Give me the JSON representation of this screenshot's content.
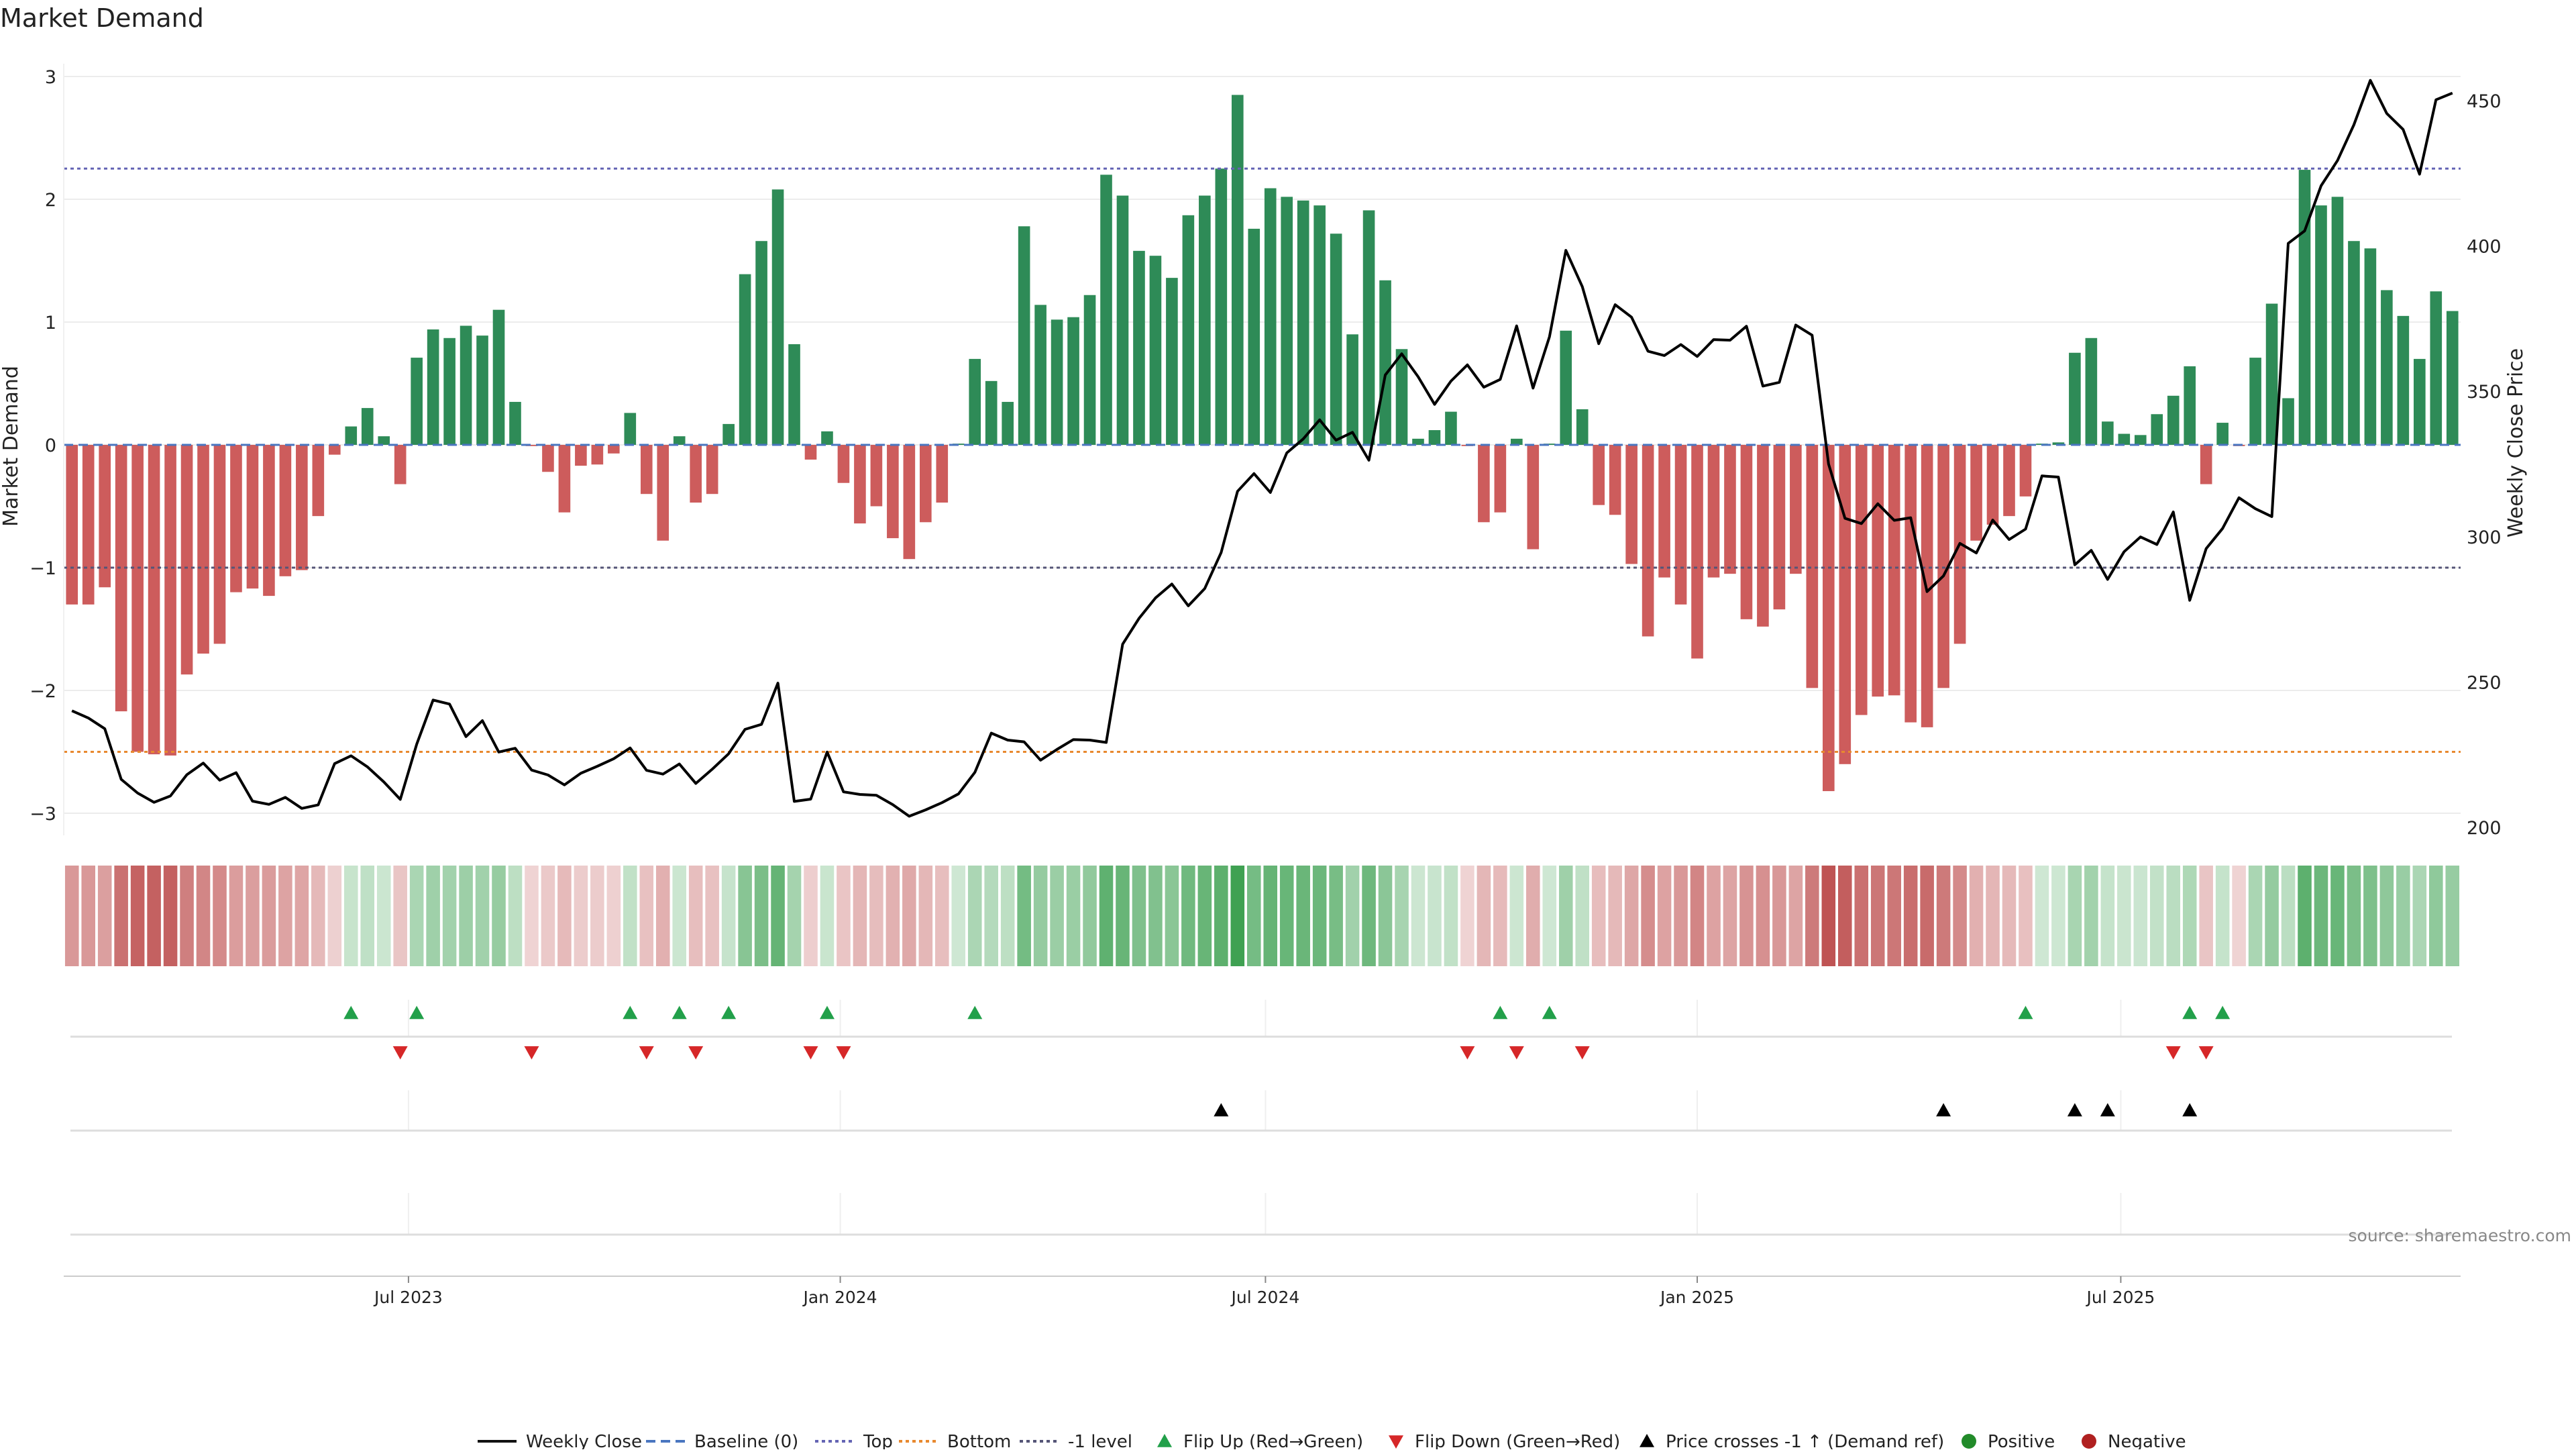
{
  "title": "Market Demand",
  "source": "source: sharemaestro.com",
  "chart_data": {
    "type": "bar",
    "title": "Market Demand",
    "ylabel": "Market Demand",
    "y2label": "Weekly Close Price",
    "ylim": [
      -3.3,
      3.0
    ],
    "yticks": [
      3,
      2,
      1,
      0,
      -1,
      -2,
      -3
    ],
    "ytick_labels": [
      "3",
      "2",
      "1",
      "0",
      "−1",
      "−2",
      "−3"
    ],
    "y2lim": [
      197,
      455
    ],
    "y2ticks": [
      450,
      400,
      350,
      300,
      250,
      200
    ],
    "ytick2_labels": [
      "450",
      "400",
      "350",
      "300",
      "250",
      "200"
    ],
    "xticks": [
      {
        "label": "Jul 2023",
        "week": 20.5
      },
      {
        "label": "Jan 2024",
        "week": 46.8
      },
      {
        "label": "Jul 2024",
        "week": 72.7
      },
      {
        "label": "Jan 2025",
        "week": 99.0
      },
      {
        "label": "Jul 2025",
        "week": 124.8
      }
    ],
    "reference_lines": {
      "top": 2.25,
      "bottom": -2.5,
      "minus_one": -1,
      "baseline": 0
    },
    "demand": [
      -1.3,
      -1.3,
      -1.16,
      -2.17,
      -2.5,
      -2.52,
      -2.53,
      -1.87,
      -1.7,
      -1.62,
      -1.2,
      -1.17,
      -1.23,
      -1.07,
      -1.02,
      -0.58,
      -0.08,
      0.15,
      0.3,
      0.07,
      -0.32,
      0.71,
      0.94,
      0.87,
      0.97,
      0.89,
      1.1,
      0.35,
      -0.01,
      -0.22,
      -0.55,
      -0.17,
      -0.16,
      -0.07,
      0.26,
      -0.4,
      -0.78,
      0.07,
      -0.47,
      -0.4,
      0.17,
      1.39,
      1.66,
      2.08,
      0.82,
      -0.12,
      0.11,
      -0.31,
      -0.64,
      -0.5,
      -0.76,
      -0.93,
      -0.63,
      -0.47,
      0.01,
      0.7,
      0.52,
      0.35,
      1.78,
      1.14,
      1.02,
      1.04,
      1.22,
      2.2,
      2.03,
      1.58,
      1.54,
      1.36,
      1.87,
      2.03,
      2.25,
      2.85,
      1.76,
      2.09,
      2.02,
      1.99,
      1.95,
      1.72,
      0.9,
      1.91,
      1.34,
      0.78,
      0.05,
      0.12,
      0.27,
      -0.01,
      -0.63,
      -0.55,
      0.05,
      -0.85,
      0.01,
      0.93,
      0.29,
      -0.49,
      -0.57,
      -0.97,
      -1.56,
      -1.08,
      -1.3,
      -1.74,
      -1.08,
      -1.05,
      -1.42,
      -1.48,
      -1.34,
      -1.05,
      -1.98,
      -2.82,
      -2.6,
      -2.2,
      -2.05,
      -2.04,
      -2.26,
      -2.3,
      -1.98,
      -1.62,
      -0.78,
      -0.65,
      -0.58,
      -0.42,
      0.01,
      0.02,
      0.75,
      0.87,
      0.19,
      0.09,
      0.08,
      0.25,
      0.4,
      0.64,
      -0.32,
      0.18,
      -0.01,
      0.71,
      1.15,
      0.38,
      2.24,
      1.95,
      2.02,
      1.66,
      1.6,
      1.26,
      1.05,
      0.7,
      1.25,
      1.09
    ],
    "weekly_close": [
      240.1,
      237.6,
      233.9,
      216.5,
      211.8,
      208.6,
      210.8,
      218.1,
      222.1,
      216.2,
      218.8,
      209.0,
      207.9,
      210.3,
      206.5,
      207.7,
      221.9,
      224.6,
      220.8,
      215.6,
      209.6,
      228.6,
      243.8,
      242.4,
      231.2,
      236.7,
      225.9,
      227.2,
      219.7,
      218.0,
      214.6,
      218.6,
      221.0,
      223.6,
      227.3,
      219.6,
      218.3,
      221.8,
      215.1,
      220.0,
      225.3,
      233.7,
      235.4,
      249.6,
      208.9,
      209.7,
      225.9,
      212.2,
      211.3,
      211.0,
      207.8,
      203.8,
      206.0,
      208.5,
      211.5,
      218.9,
      232.4,
      230.0,
      229.4,
      223.1,
      226.8,
      230.2,
      230.0,
      229.2,
      263.0,
      271.9,
      278.9,
      283.7,
      276.2,
      282.1,
      294.5,
      315.6,
      321.7,
      315.2,
      328.8,
      333.6,
      340.2,
      333.2,
      335.9,
      326.3,
      355.6,
      362.9,
      355.0,
      345.5,
      353.5,
      359.1,
      351.4,
      354.1,
      372.5,
      351.1,
      368.8,
      398.5,
      386.0,
      366.4,
      379.8,
      375.5,
      363.8,
      362.3,
      366.1,
      362.0,
      367.8,
      367.6,
      372.4,
      351.8,
      353.1,
      372.8,
      369.3,
      325.0,
      306.3,
      304.5,
      311.3,
      305.6,
      306.5,
      281.1,
      286.5,
      297.7,
      294.4,
      305.7,
      299.0,
      302.6,
      320.9,
      320.5,
      290.3,
      295.3,
      285.3,
      294.8,
      299.9,
      297.3,
      308.5,
      278.1,
      295.9,
      302.8,
      313.4,
      309.6,
      306.9,
      400.9,
      405.2,
      420.7,
      429.4,
      441.7,
      457.0,
      445.6,
      440.1,
      424.7,
      450.3,
      452.6
    ],
    "flip_up_weeks": [
      17,
      21,
      34,
      37,
      40,
      46,
      55,
      87,
      90,
      119,
      129,
      131
    ],
    "flip_down_weeks": [
      20,
      28,
      35,
      38,
      45,
      47,
      85,
      88,
      92,
      128,
      130
    ],
    "price_cross_weeks": [
      70,
      114,
      122,
      124,
      129
    ],
    "legend": [
      {
        "label": "Weekly Close",
        "kind": "line",
        "color": "#111111"
      },
      {
        "label": "Baseline (0)",
        "kind": "dashed",
        "color": "#4a76c0"
      },
      {
        "label": "Top",
        "kind": "dotted",
        "color": "#6464b4"
      },
      {
        "label": "Bottom",
        "kind": "dotted",
        "color": "#e8892f"
      },
      {
        "label": "-1 level",
        "kind": "dotted",
        "color": "#555577"
      },
      {
        "label": "Flip Up (Red→Green)",
        "kind": "triangle-up",
        "color": "#22a04a"
      },
      {
        "label": "Flip Down (Green→Red)",
        "kind": "triangle-down",
        "color": "#d62728"
      },
      {
        "label": "Price crosses -1 ↑ (Demand ref)",
        "kind": "triangle-up",
        "color": "#000000"
      },
      {
        "label": "Positive",
        "kind": "dot",
        "color": "#228b2a"
      },
      {
        "label": "Negative",
        "kind": "dot",
        "color": "#b02020"
      }
    ],
    "colors": {
      "positive": "#2e8b57",
      "negative": "#cd5c5c",
      "price": "#000000"
    }
  }
}
